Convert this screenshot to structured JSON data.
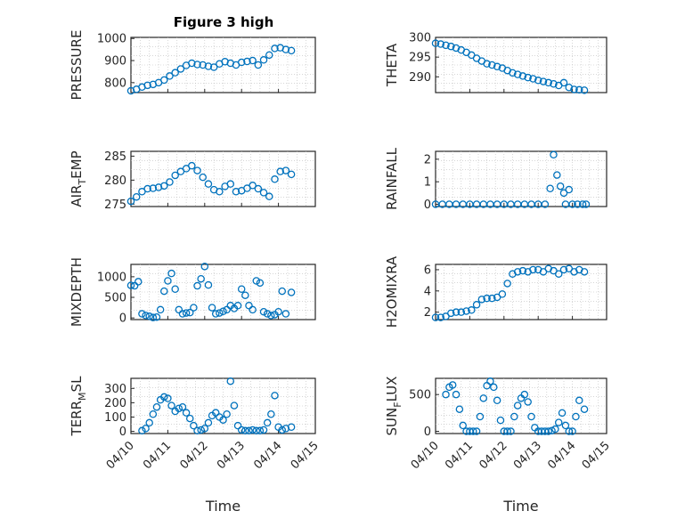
{
  "figure": {
    "title": "Figure 3 high"
  },
  "colors": {
    "marker": "#0072bd",
    "axis": "#262626"
  },
  "chart_data": [
    {
      "type": "scatter",
      "id": "pressure",
      "ylabel": "PRESSURE",
      "ylabel_sub": "",
      "xlabel": "",
      "title": "Figure 3 high",
      "ylim": [
        755,
        1005
      ],
      "yticks": [
        800,
        900,
        1000
      ],
      "xlim": [
        0,
        5
      ],
      "xticks": [],
      "x": [
        0,
        0.15,
        0.3,
        0.45,
        0.6,
        0.75,
        0.9,
        1.05,
        1.2,
        1.35,
        1.5,
        1.65,
        1.8,
        1.95,
        2.1,
        2.25,
        2.4,
        2.55,
        2.7,
        2.85,
        3.0,
        3.15,
        3.3,
        3.45,
        3.6,
        3.75,
        3.9,
        4.05,
        4.2,
        4.35
      ],
      "y": [
        763,
        770,
        780,
        788,
        792,
        800,
        812,
        830,
        845,
        862,
        878,
        888,
        882,
        880,
        874,
        870,
        885,
        895,
        888,
        880,
        892,
        896,
        900,
        880,
        903,
        925,
        955,
        958,
        950,
        945
      ]
    },
    {
      "type": "scatter",
      "id": "theta",
      "ylabel": "THETA",
      "ylabel_sub": "",
      "xlabel": "",
      "ylim": [
        286,
        300
      ],
      "yticks": [
        290,
        295,
        300
      ],
      "xlim": [
        0,
        5
      ],
      "xticks": [],
      "x": [
        0,
        0.15,
        0.3,
        0.45,
        0.6,
        0.75,
        0.9,
        1.05,
        1.2,
        1.35,
        1.5,
        1.65,
        1.8,
        1.95,
        2.1,
        2.25,
        2.4,
        2.55,
        2.7,
        2.85,
        3.0,
        3.15,
        3.3,
        3.45,
        3.6,
        3.75,
        3.9,
        4.05,
        4.2,
        4.35
      ],
      "y": [
        298.5,
        298.3,
        298,
        297.7,
        297.3,
        296.8,
        296.2,
        295.5,
        294.7,
        294,
        293.3,
        293,
        292.6,
        292.2,
        291.6,
        291,
        290.6,
        290.2,
        289.8,
        289.5,
        289.1,
        288.8,
        288.5,
        288.2,
        287.8,
        288.5,
        287.3,
        286.8,
        286.7,
        286.6
      ]
    },
    {
      "type": "scatter",
      "id": "air_temp",
      "ylabel": "AIR",
      "ylabel_sub": "T",
      "ylabel_tail": "EMP",
      "xlabel": "",
      "ylim": [
        274.5,
        286
      ],
      "yticks": [
        275,
        280,
        285
      ],
      "xlim": [
        0,
        5
      ],
      "xticks": [],
      "x": [
        0,
        0.15,
        0.3,
        0.45,
        0.6,
        0.75,
        0.9,
        1.05,
        1.2,
        1.35,
        1.5,
        1.65,
        1.8,
        1.95,
        2.1,
        2.25,
        2.4,
        2.55,
        2.7,
        2.85,
        3.0,
        3.15,
        3.3,
        3.45,
        3.6,
        3.75,
        3.9,
        4.05,
        4.2,
        4.35
      ],
      "y": [
        275.6,
        276.5,
        277.6,
        278.2,
        278.3,
        278.5,
        278.8,
        279.6,
        281,
        281.8,
        282.4,
        283,
        282,
        280.6,
        279.2,
        278,
        277.6,
        278.7,
        279.2,
        277.6,
        277.8,
        278.3,
        278.9,
        278.2,
        277.4,
        276.6,
        280.2,
        281.8,
        282,
        281.2
      ]
    },
    {
      "type": "scatter",
      "id": "rainfall",
      "ylabel": "RAINFALL",
      "ylabel_sub": "",
      "xlabel": "",
      "ylim": [
        -0.1,
        2.35
      ],
      "yticks": [
        0,
        1,
        2
      ],
      "xlim": [
        0,
        5
      ],
      "xticks": [],
      "x": [
        0,
        0.2,
        0.4,
        0.6,
        0.8,
        1.0,
        1.2,
        1.4,
        1.6,
        1.8,
        2.0,
        2.2,
        2.4,
        2.6,
        2.8,
        3.0,
        3.2,
        3.35,
        3.45,
        3.55,
        3.65,
        3.75,
        3.8,
        3.9,
        4.0,
        4.15,
        4.3,
        4.4
      ],
      "y": [
        0,
        0,
        0,
        0,
        0,
        0,
        0,
        0,
        0,
        0,
        0,
        0,
        0,
        0,
        0,
        0,
        0,
        0.7,
        2.2,
        1.3,
        0.8,
        0.5,
        0,
        0.65,
        0,
        0,
        0,
        0
      ]
    },
    {
      "type": "scatter",
      "id": "mixdepth",
      "ylabel": "MIXDEPTH",
      "ylabel_sub": "",
      "xlabel": "",
      "ylim": [
        -40,
        1300
      ],
      "yticks": [
        0,
        500,
        1000
      ],
      "xlim": [
        0,
        5
      ],
      "xticks": [],
      "x": [
        0,
        0.1,
        0.2,
        0.3,
        0.4,
        0.5,
        0.6,
        0.7,
        0.8,
        0.9,
        1.0,
        1.1,
        1.2,
        1.3,
        1.4,
        1.5,
        1.6,
        1.7,
        1.8,
        1.9,
        2.0,
        2.1,
        2.2,
        2.3,
        2.4,
        2.5,
        2.6,
        2.7,
        2.8,
        2.9,
        3.0,
        3.1,
        3.2,
        3.3,
        3.4,
        3.5,
        3.6,
        3.7,
        3.8,
        3.9,
        4.0,
        4.1,
        4.2,
        4.35
      ],
      "y": [
        790,
        780,
        880,
        100,
        60,
        40,
        10,
        20,
        200,
        650,
        900,
        1080,
        700,
        200,
        100,
        120,
        130,
        250,
        780,
        950,
        1250,
        800,
        250,
        100,
        120,
        160,
        200,
        300,
        230,
        300,
        700,
        550,
        300,
        200,
        900,
        850,
        150,
        100,
        60,
        80,
        150,
        650,
        100,
        620
      ]
    },
    {
      "type": "scatter",
      "id": "h2omixra",
      "ylabel": "H2OMIXRA",
      "ylabel_sub": "",
      "xlabel": "",
      "ylim": [
        1.3,
        6.5
      ],
      "yticks": [
        2,
        4,
        6
      ],
      "xlim": [
        0,
        5
      ],
      "xticks": [],
      "x": [
        0,
        0.15,
        0.3,
        0.45,
        0.6,
        0.75,
        0.9,
        1.05,
        1.2,
        1.35,
        1.5,
        1.65,
        1.8,
        1.95,
        2.1,
        2.25,
        2.4,
        2.55,
        2.7,
        2.85,
        3.0,
        3.15,
        3.3,
        3.45,
        3.6,
        3.75,
        3.9,
        4.05,
        4.2,
        4.35
      ],
      "y": [
        1.5,
        1.5,
        1.6,
        1.9,
        2,
        2,
        2.1,
        2.2,
        2.7,
        3.2,
        3.3,
        3.3,
        3.4,
        3.7,
        4.7,
        5.6,
        5.8,
        5.9,
        5.8,
        6,
        6,
        5.8,
        6.1,
        5.9,
        5.6,
        6,
        6.1,
        5.8,
        6,
        5.8
      ]
    },
    {
      "type": "scatter",
      "id": "terr_msl",
      "ylabel": "TERR",
      "ylabel_sub": "M",
      "ylabel_tail": "SL",
      "xlabel": "Time",
      "ylim": [
        -15,
        370
      ],
      "yticks": [
        0,
        100,
        200,
        300
      ],
      "xlim": [
        0,
        5
      ],
      "xticks": [
        "04/10",
        "04/11",
        "04/12",
        "04/13",
        "04/14",
        "04/15"
      ],
      "x": [
        0.3,
        0.4,
        0.5,
        0.6,
        0.7,
        0.8,
        0.9,
        1.0,
        1.1,
        1.2,
        1.3,
        1.4,
        1.5,
        1.6,
        1.7,
        1.8,
        1.9,
        2.0,
        2.1,
        2.2,
        2.3,
        2.4,
        2.5,
        2.6,
        2.7,
        2.8,
        2.9,
        3.0,
        3.1,
        3.2,
        3.3,
        3.4,
        3.5,
        3.6,
        3.7,
        3.8,
        3.9,
        4.0,
        4.1,
        4.2,
        4.35
      ],
      "y": [
        5,
        20,
        60,
        120,
        170,
        220,
        240,
        230,
        180,
        140,
        160,
        170,
        130,
        90,
        40,
        5,
        10,
        20,
        60,
        110,
        130,
        100,
        80,
        120,
        350,
        180,
        40,
        10,
        5,
        5,
        10,
        5,
        5,
        10,
        60,
        120,
        250,
        30,
        10,
        20,
        30
      ]
    },
    {
      "type": "scatter",
      "id": "sun_flux",
      "ylabel": "SUN",
      "ylabel_sub": "F",
      "ylabel_tail": "LUX",
      "xlabel": "Time",
      "ylim": [
        -30,
        720
      ],
      "yticks": [
        0,
        500
      ],
      "xlim": [
        0,
        5
      ],
      "xticks": [
        "04/10",
        "04/11",
        "04/12",
        "04/13",
        "04/14",
        "04/15"
      ],
      "x": [
        0.3,
        0.4,
        0.5,
        0.6,
        0.7,
        0.8,
        0.9,
        1.0,
        1.1,
        1.2,
        1.3,
        1.4,
        1.5,
        1.6,
        1.7,
        1.8,
        1.9,
        2.0,
        2.1,
        2.2,
        2.3,
        2.4,
        2.5,
        2.6,
        2.7,
        2.8,
        2.9,
        3.0,
        3.1,
        3.2,
        3.3,
        3.4,
        3.5,
        3.6,
        3.7,
        3.8,
        3.9,
        4.0,
        4.1,
        4.2,
        4.35
      ],
      "y": [
        500,
        600,
        630,
        500,
        300,
        80,
        0,
        0,
        0,
        0,
        200,
        450,
        620,
        680,
        600,
        420,
        150,
        0,
        0,
        0,
        200,
        350,
        450,
        500,
        400,
        200,
        50,
        0,
        0,
        0,
        0,
        10,
        30,
        120,
        250,
        80,
        0,
        0,
        200,
        420,
        300
      ]
    }
  ]
}
